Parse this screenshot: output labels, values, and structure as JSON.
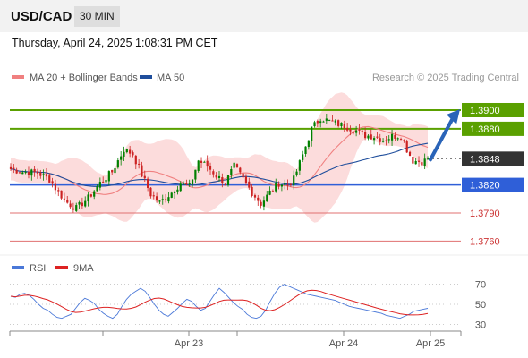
{
  "header": {
    "symbol": "USD/CAD",
    "timeframe": "30 MIN"
  },
  "datetime": "Thursday, April 24, 2025 1:08:31 PM CET",
  "legend": {
    "ma20": "MA 20 + Bollinger Bands",
    "ma50": "MA 50",
    "copyright": "Research © 2025 Trading Central"
  },
  "colors": {
    "ma20": "#f08080",
    "ma50": "#1f4e9c",
    "bands": "#fbd6d6",
    "up_candle": "#008000",
    "down_candle": "#cc2222",
    "resistance": "#5aa000",
    "support": "#2f5fd8",
    "support_weak": "#e07070",
    "current": "#333333",
    "rsi": "#4a78d8",
    "rsi_ma": "#dd2222"
  },
  "chart_data": [
    {
      "type": "candlestick",
      "x_ticks": [
        "Apr 23",
        "Apr 24",
        "Apr 25"
      ],
      "ylim": [
        1.3745,
        1.3922
      ],
      "levels": [
        {
          "label": "1.3900",
          "value": 1.39,
          "kind": "resistance"
        },
        {
          "label": "1.3880",
          "value": 1.388,
          "kind": "resistance"
        },
        {
          "label": "1.3848",
          "value": 1.3848,
          "kind": "current"
        },
        {
          "label": "1.3820",
          "value": 1.382,
          "kind": "support"
        },
        {
          "label": "1.3790",
          "value": 1.379,
          "kind": "support_weak"
        },
        {
          "label": "1.3760",
          "value": 1.376,
          "kind": "support_weak"
        }
      ],
      "forecast": {
        "from": 1.3848,
        "to": 1.39,
        "direction": "up"
      },
      "waypoints": [
        [
          0,
          1.3837
        ],
        [
          4,
          1.3834
        ],
        [
          9,
          1.3833
        ],
        [
          13,
          1.3826
        ],
        [
          16,
          1.3812
        ],
        [
          19,
          1.3801
        ],
        [
          22,
          1.3795
        ],
        [
          26,
          1.3806
        ],
        [
          30,
          1.3822
        ],
        [
          34,
          1.3834
        ],
        [
          38,
          1.3858
        ],
        [
          41,
          1.3853
        ],
        [
          44,
          1.3831
        ],
        [
          47,
          1.381
        ],
        [
          50,
          1.3801
        ],
        [
          54,
          1.3812
        ],
        [
          57,
          1.3822
        ],
        [
          60,
          1.3818
        ],
        [
          63,
          1.3846
        ],
        [
          66,
          1.384
        ],
        [
          69,
          1.383
        ],
        [
          72,
          1.3822
        ],
        [
          75,
          1.384
        ],
        [
          78,
          1.3826
        ],
        [
          81,
          1.3812
        ],
        [
          84,
          1.38
        ],
        [
          87,
          1.3812
        ],
        [
          90,
          1.3822
        ],
        [
          93,
          1.382
        ],
        [
          95,
          1.3826
        ],
        [
          98,
          1.3852
        ],
        [
          101,
          1.388
        ],
        [
          104,
          1.3892
        ],
        [
          107,
          1.3888
        ],
        [
          110,
          1.3885
        ],
        [
          113,
          1.3882
        ],
        [
          116,
          1.3878
        ],
        [
          119,
          1.3873
        ],
        [
          122,
          1.3872
        ],
        [
          125,
          1.3868
        ],
        [
          128,
          1.3872
        ],
        [
          131,
          1.3873
        ],
        [
          133,
          1.3858
        ],
        [
          135,
          1.3846
        ],
        [
          138,
          1.3845
        ],
        [
          140,
          1.3847
        ]
      ],
      "candle_count": 141,
      "seed": 7
    },
    {
      "type": "line",
      "name": "RSI",
      "ma_label": "9MA",
      "ylim": [
        25,
        75
      ],
      "y_ticks": [
        70,
        50,
        30
      ],
      "values": [
        58,
        57,
        60,
        61,
        59,
        55,
        50,
        46,
        44,
        40,
        37,
        36,
        38,
        40,
        46,
        52,
        56,
        54,
        51,
        45,
        41,
        38,
        36,
        40,
        48,
        55,
        60,
        63,
        66,
        63,
        57,
        50,
        44,
        40,
        38,
        42,
        46,
        51,
        55,
        53,
        48,
        44,
        46,
        53,
        60,
        66,
        62,
        57,
        52,
        48,
        45,
        40,
        37,
        36,
        38,
        44,
        53,
        61,
        67,
        70,
        68,
        66,
        64,
        62,
        60,
        59,
        58,
        57,
        56,
        55,
        54,
        52,
        50,
        48,
        47,
        46,
        45,
        44,
        43,
        42,
        41,
        39,
        38,
        37,
        36,
        38,
        40,
        43,
        44,
        45,
        46
      ]
    }
  ]
}
